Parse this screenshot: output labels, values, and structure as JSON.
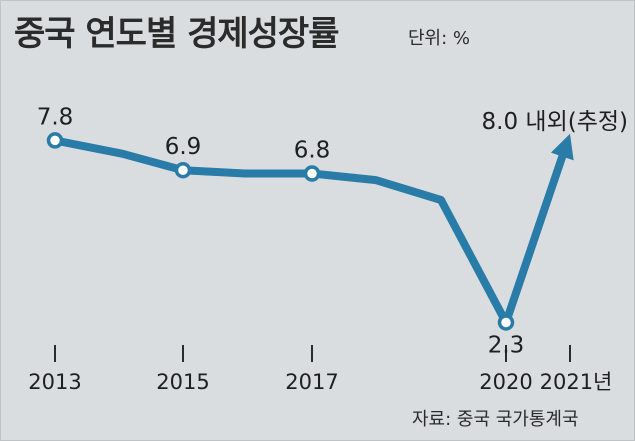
{
  "header": {
    "title": "중국 연도별 경제성장률",
    "unit": "단위: %"
  },
  "footer": {
    "source": "자료: 중국 국가통계국"
  },
  "chart_data": {
    "type": "line",
    "title": "중국 연도별 경제성장률",
    "unit": "%",
    "x": [
      2013,
      2014,
      2015,
      2016,
      2017,
      2018,
      2019,
      2020,
      2021
    ],
    "y": [
      7.8,
      7.4,
      6.9,
      6.8,
      6.8,
      6.6,
      6.0,
      2.3,
      8.0
    ],
    "tick_labels": [
      "2013",
      "2015",
      "2017",
      "2020",
      "2021년"
    ],
    "tick_years": [
      2013,
      2015,
      2017,
      2020,
      2021
    ],
    "markers": [
      2013,
      2015,
      2017,
      2020
    ],
    "data_labels": [
      {
        "year": 2013,
        "value": 7.8,
        "text": "7.8"
      },
      {
        "year": 2015,
        "value": 6.9,
        "text": "6.9"
      },
      {
        "year": 2017,
        "value": 6.8,
        "text": "6.8"
      },
      {
        "year": 2020,
        "value": 2.3,
        "text": "2.3"
      },
      {
        "year": 2021,
        "value": 8.0,
        "text": "8.0 내외(추정)"
      }
    ],
    "estimated_last_point": true,
    "colors": {
      "line": "#2a7ca8",
      "marker_fill": "#ffffff",
      "background": "#dadddf",
      "tick": "#2b2b2b"
    }
  }
}
